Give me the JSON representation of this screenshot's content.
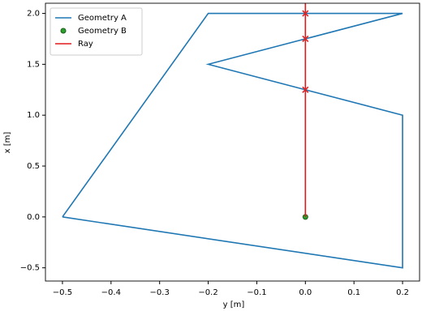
{
  "chart_data": {
    "type": "line",
    "xlabel": "y [m]",
    "ylabel": "x [m]",
    "xlim": [
      -0.535,
      0.235
    ],
    "ylim": [
      -0.63,
      2.1
    ],
    "xticks": [
      {
        "value": -0.5,
        "label": "−0.5"
      },
      {
        "value": -0.4,
        "label": "−0.4"
      },
      {
        "value": -0.3,
        "label": "−0.3"
      },
      {
        "value": -0.2,
        "label": "−0.2"
      },
      {
        "value": -0.1,
        "label": "−0.1"
      },
      {
        "value": 0,
        "label": "0.0"
      },
      0.1,
      0.2
    ],
    "yticks": [
      {
        "value": -0.5,
        "label": "−0.5"
      },
      {
        "value": 0,
        "label": "0.0"
      },
      0.5,
      {
        "value": 1,
        "label": "1.0"
      },
      1.5,
      {
        "value": 2,
        "label": "2.0"
      }
    ],
    "legend": "upper left",
    "series": [
      {
        "name": "Geometry A",
        "color": "#1f77b4",
        "style": "line",
        "x": [
          -0.5,
          -0.2,
          0.2,
          -0.2,
          0.2,
          0.2,
          -0.5
        ],
        "values": [
          0,
          2.0,
          2.0,
          1.5,
          1.0,
          -0.5,
          0
        ]
      },
      {
        "name": "Geometry B",
        "color": "#2ca02c",
        "style": "circle",
        "x": [
          0
        ],
        "values": [
          0
        ]
      },
      {
        "name": "Ray",
        "color": "#e41a1c",
        "style": "line",
        "x": [
          0,
          0
        ],
        "values": [
          0,
          2.1
        ]
      },
      {
        "color": "#d62728",
        "style": "cross",
        "x": [
          0,
          0,
          0
        ],
        "values": [
          2.0,
          1.75,
          1.25
        ]
      }
    ]
  }
}
